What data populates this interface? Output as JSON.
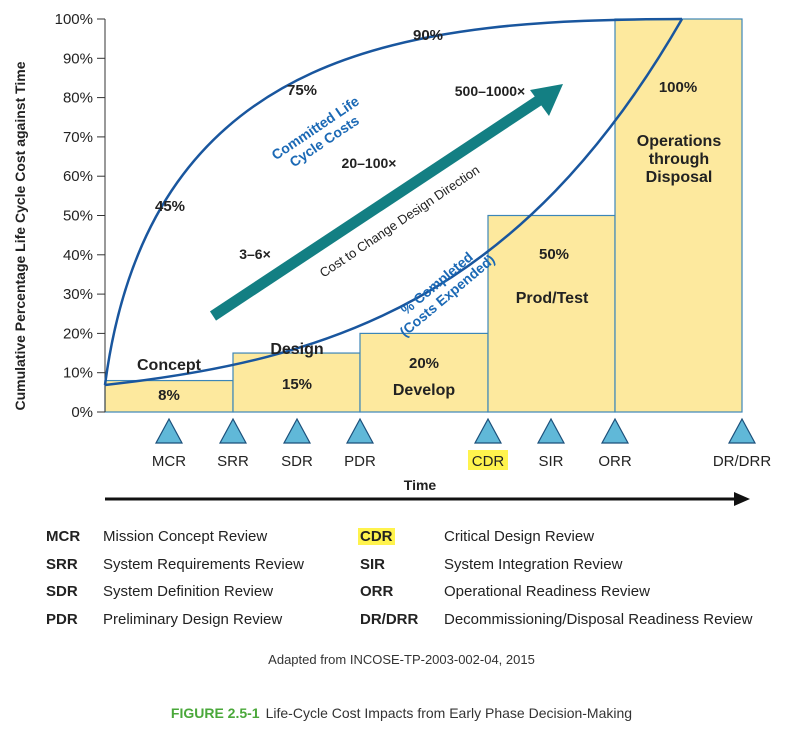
{
  "chart_data": {
    "type": "bar",
    "ylabel": "Cumulative Percentage Life Cycle Cost against Time",
    "xlabel": "Time",
    "ylim": [
      0,
      100
    ],
    "y_ticks": [
      "0%",
      "10%",
      "20%",
      "30%",
      "40%",
      "50%",
      "60%",
      "70%",
      "80%",
      "90%",
      "100%"
    ],
    "phases": [
      {
        "name": "Concept",
        "value_label": "8%",
        "value": 8
      },
      {
        "name": "Design",
        "value_label": "15%",
        "value": 15
      },
      {
        "name": "Develop",
        "value_label": "20%",
        "value": 20
      },
      {
        "name": "Prod/Test",
        "value_label": "50%",
        "value": 50
      },
      {
        "name": "Operations through Disposal",
        "value_label": "100%",
        "value": 100
      }
    ],
    "reviews": [
      "MCR",
      "SRR",
      "SDR",
      "PDR",
      "CDR",
      "SIR",
      "ORR",
      "DR/DRR"
    ],
    "highlighted_review": "CDR",
    "curves": [
      {
        "name": "Committed Life Cycle Costs",
        "labels": [
          "45%",
          "75%",
          "90%"
        ]
      },
      {
        "name": "% Completed (Costs Expended)"
      }
    ],
    "arrow": {
      "label": "Cost to Change Design Direction",
      "multipliers": [
        "3–6×",
        "20–100×",
        "500–1000×"
      ]
    },
    "colors": {
      "bar_fill": "#fde99e",
      "bar_stroke": "#3c86b8",
      "curve": "#19569e",
      "arrow": "#137f83",
      "highlight": "#fff34d",
      "caption_green": "#4aa83a"
    }
  },
  "legend": [
    [
      {
        "abbr": "MCR",
        "desc": "Mission Concept Review"
      },
      {
        "abbr": "CDR",
        "desc": "Critical Design Review"
      }
    ],
    [
      {
        "abbr": "SRR",
        "desc": "System Requirements Review"
      },
      {
        "abbr": "SIR",
        "desc": "System Integration Review"
      }
    ],
    [
      {
        "abbr": "SDR",
        "desc": "System Definition Review"
      },
      {
        "abbr": "ORR",
        "desc": "Operational Readiness Review"
      }
    ],
    [
      {
        "abbr": "PDR",
        "desc": "Preliminary Design Review"
      },
      {
        "abbr": "DR/DRR",
        "desc": "Decommissioning/Disposal Readiness Review"
      }
    ]
  ],
  "source": "Adapted from INCOSE-TP-2003-002-04, 2015",
  "caption": {
    "figure": "FIGURE 2.5-1",
    "text": "Life-Cycle Cost Impacts from Early Phase Decision-Making"
  }
}
